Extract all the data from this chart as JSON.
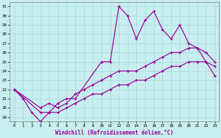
{
  "xlabel": "Windchill (Refroidissement éolien,°C)",
  "bg_color": "#c8eef0",
  "line_color": "#990099",
  "grid_color": "#a0d8e0",
  "xlim": [
    -0.5,
    23.5
  ],
  "ylim": [
    18.5,
    31.5
  ],
  "xticks": [
    0,
    1,
    2,
    3,
    4,
    5,
    6,
    7,
    8,
    9,
    10,
    11,
    12,
    13,
    14,
    15,
    16,
    17,
    18,
    19,
    20,
    21,
    22,
    23
  ],
  "yticks": [
    19,
    20,
    21,
    22,
    23,
    24,
    25,
    26,
    27,
    28,
    29,
    30,
    31
  ],
  "series": [
    {
      "x": [
        0,
        1,
        2,
        3,
        4,
        5,
        6,
        7,
        10,
        11,
        12,
        13,
        14,
        15,
        16,
        17,
        18,
        19,
        20,
        21,
        22,
        23
      ],
      "y": [
        22,
        21,
        19.5,
        18.5,
        19.5,
        20.5,
        21,
        21,
        25,
        25,
        31,
        30,
        27.5,
        29.5,
        30.5,
        28.5,
        27.5,
        29,
        27,
        26.5,
        25,
        24.5
      ]
    },
    {
      "x": [
        0,
        3,
        4,
        5,
        6,
        7,
        8,
        9,
        10,
        11,
        12,
        13,
        14,
        15,
        16,
        17,
        18,
        19,
        20,
        21,
        22,
        23
      ],
      "y": [
        22,
        20,
        20.5,
        20,
        20.5,
        21.5,
        22,
        22.5,
        23,
        23.5,
        24,
        24,
        24,
        24.5,
        25,
        25.5,
        26,
        26,
        26.5,
        26.5,
        26,
        25
      ]
    },
    {
      "x": [
        0,
        3,
        4,
        5,
        6,
        7,
        8,
        9,
        10,
        11,
        12,
        13,
        14,
        15,
        16,
        17,
        18,
        19,
        20,
        21,
        22,
        23
      ],
      "y": [
        22,
        19.5,
        19.5,
        19.5,
        20,
        20.5,
        21,
        21.5,
        21.5,
        22,
        22.5,
        22.5,
        23,
        23,
        23.5,
        24,
        24.5,
        24.5,
        25,
        25,
        25,
        23.5
      ]
    }
  ]
}
